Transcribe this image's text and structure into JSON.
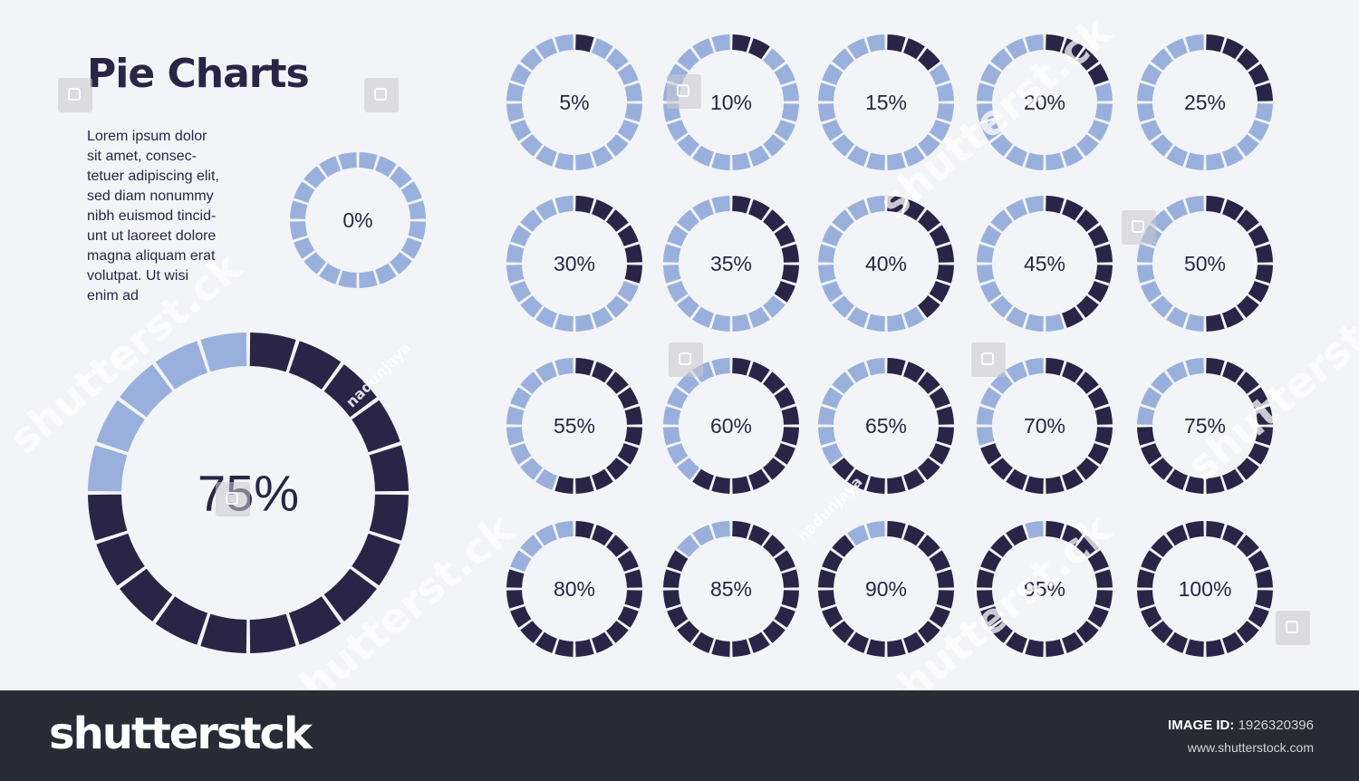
{
  "title": "Pie Charts",
  "description": "Lorem ipsum dolor\nsit amet, consec-\ntetuer adipiscing elit,\nsed diam nonummy\nnibh euismod tincid-\nunt ut laoreet dolore\nmagna aliquam erat\nvolutpat. Ut wisi\nenim ad",
  "colors": {
    "filled": "#2a2547",
    "empty": "#9ab0dc",
    "background": "#f3f4f7",
    "footer": "#262b35"
  },
  "chart_data": {
    "type": "pie",
    "segments_per_ring": 20,
    "featured": {
      "value": 75,
      "label": "75%"
    },
    "standalone": {
      "value": 0,
      "label": "0%"
    },
    "grid": [
      {
        "value": 5,
        "label": "5%"
      },
      {
        "value": 10,
        "label": "10%"
      },
      {
        "value": 15,
        "label": "15%"
      },
      {
        "value": 20,
        "label": "20%"
      },
      {
        "value": 25,
        "label": "25%"
      },
      {
        "value": 30,
        "label": "30%"
      },
      {
        "value": 35,
        "label": "35%"
      },
      {
        "value": 40,
        "label": "40%"
      },
      {
        "value": 45,
        "label": "45%"
      },
      {
        "value": 50,
        "label": "50%"
      },
      {
        "value": 55,
        "label": "55%"
      },
      {
        "value": 60,
        "label": "60%"
      },
      {
        "value": 65,
        "label": "65%"
      },
      {
        "value": 70,
        "label": "70%"
      },
      {
        "value": 75,
        "label": "75%"
      },
      {
        "value": 80,
        "label": "80%"
      },
      {
        "value": 85,
        "label": "85%"
      },
      {
        "value": 90,
        "label": "90%"
      },
      {
        "value": 95,
        "label": "95%"
      },
      {
        "value": 100,
        "label": "100%"
      }
    ]
  },
  "watermark": {
    "brand": "shutterstock",
    "author": "nadunjaya",
    "tile_text": "shutterst.ck"
  },
  "footer": {
    "brand": "shutterstck",
    "image_id_label": "IMAGE ID:",
    "image_id": "1926320396",
    "url": "www.shutterstock.com"
  }
}
